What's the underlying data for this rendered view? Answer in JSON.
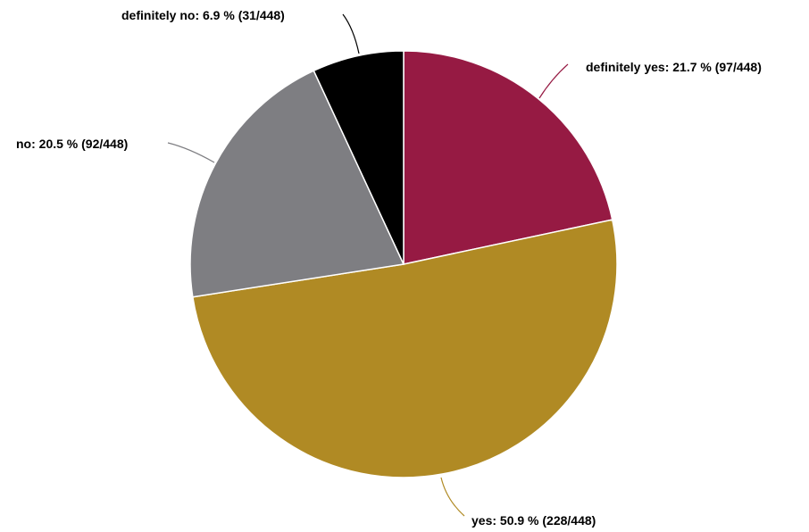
{
  "chart_data": {
    "type": "pie",
    "total": 448,
    "slices": [
      {
        "name": "definitely yes",
        "count": 97,
        "percent": 21.7,
        "color": "#961a43",
        "label": "definitely yes: 21.7 % (97/448)"
      },
      {
        "name": "yes",
        "count": 228,
        "percent": 50.9,
        "color": "#b08a24",
        "label": "yes: 50.9 % (228/448)"
      },
      {
        "name": "no",
        "count": 92,
        "percent": 20.5,
        "color": "#7e7e82",
        "label": "no: 20.5 % (92/448)"
      },
      {
        "name": "definitely no",
        "count": 31,
        "percent": 6.9,
        "color": "#000000",
        "label": "definitely no: 6.9 % (31/448)"
      }
    ]
  }
}
